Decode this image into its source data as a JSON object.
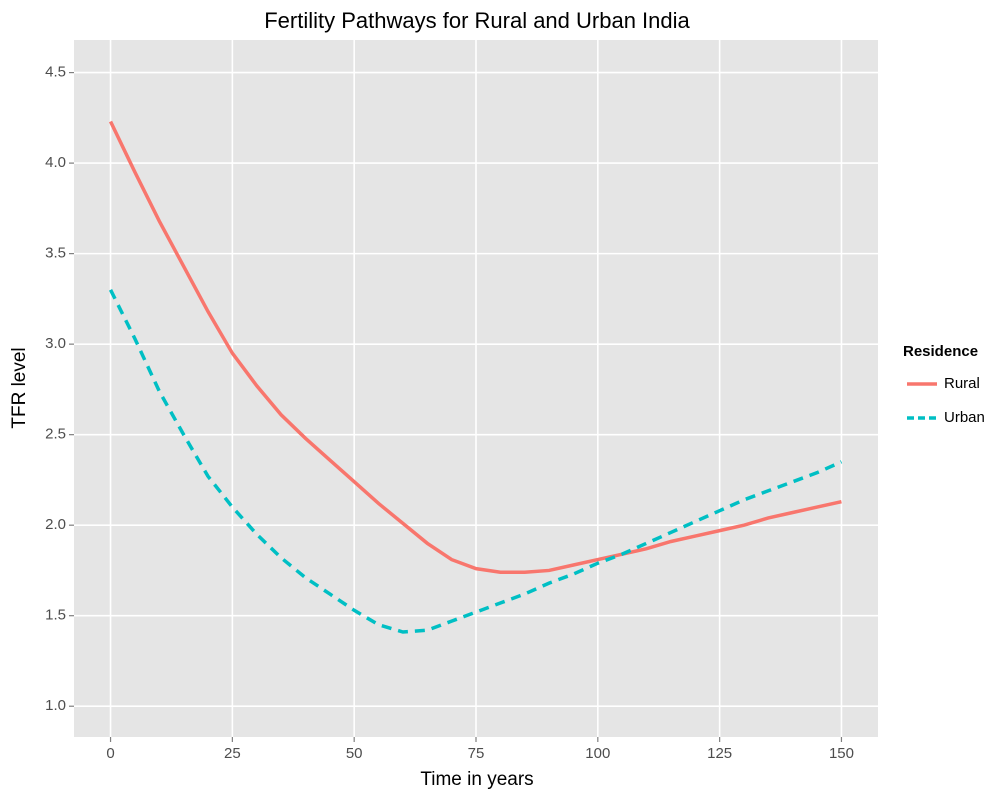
{
  "chart_data": {
    "type": "line",
    "title": "Fertility Pathways for Rural and Urban India",
    "x_label": "Time in years",
    "y_label": "TFR level",
    "legend_title": "Residence",
    "legend_position": "right",
    "grid": true,
    "x": [
      0,
      5,
      10,
      15,
      20,
      25,
      30,
      35,
      40,
      45,
      50,
      55,
      60,
      65,
      70,
      75,
      80,
      85,
      90,
      95,
      100,
      105,
      110,
      115,
      120,
      125,
      130,
      135,
      140,
      145,
      150
    ],
    "series": [
      {
        "name": "Rural",
        "color": "#F8766D",
        "linetype": "solid",
        "values": [
          4.23,
          3.95,
          3.68,
          3.43,
          3.18,
          2.95,
          2.77,
          2.61,
          2.48,
          2.36,
          2.24,
          2.12,
          2.01,
          1.9,
          1.81,
          1.76,
          1.74,
          1.74,
          1.75,
          1.78,
          1.81,
          1.84,
          1.87,
          1.91,
          1.94,
          1.97,
          2.0,
          2.04,
          2.07,
          2.1,
          2.13
        ]
      },
      {
        "name": "Urban",
        "color": "#00BFC4",
        "linetype": "dashed",
        "values": [
          3.3,
          3.03,
          2.74,
          2.5,
          2.27,
          2.1,
          1.95,
          1.82,
          1.71,
          1.62,
          1.53,
          1.45,
          1.41,
          1.42,
          1.47,
          1.52,
          1.57,
          1.62,
          1.68,
          1.73,
          1.79,
          1.84,
          1.9,
          1.96,
          2.02,
          2.08,
          2.14,
          2.19,
          2.24,
          2.29,
          2.35
        ]
      }
    ],
    "xlim": [
      -7.5,
      157.5
    ],
    "xticks": [
      0,
      25,
      50,
      75,
      100,
      125,
      150
    ],
    "ylim": [
      0.83,
      4.68
    ],
    "yticks": [
      {
        "value": 1.0,
        "label": "1.0"
      },
      1.5,
      {
        "value": 2.0,
        "label": "2.0"
      },
      2.5,
      {
        "value": 3.0,
        "label": "3.0"
      },
      3.5,
      {
        "value": 4.0,
        "label": "4.0"
      },
      4.5
    ]
  }
}
